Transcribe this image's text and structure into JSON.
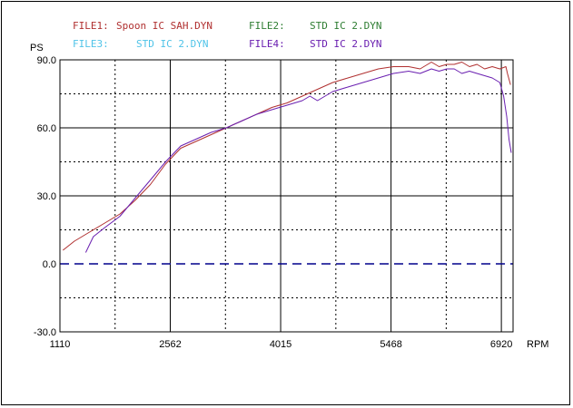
{
  "legend": {
    "file1": {
      "tag": "FILE1:",
      "name": "Spoon IC  SAH.DYN",
      "color": "#b03030"
    },
    "file2": {
      "tag": "FILE2:",
      "name": "STD IC 2.DYN",
      "color": "#2e7d32"
    },
    "file3": {
      "tag": "FILE3:",
      "name": "STD IC 2.DYN",
      "color": "#4fc3e8"
    },
    "file4": {
      "tag": "FILE4:",
      "name": "STD IC 2.DYN",
      "color": "#6a1fb0"
    }
  },
  "chart_data": {
    "type": "line",
    "title": "",
    "xlabel": "RPM",
    "ylabel": "PS",
    "xlim": [
      1110,
      7074
    ],
    "ylim": [
      -30,
      90
    ],
    "x_tick_values": [
      1110,
      2562,
      4015,
      5468,
      6920
    ],
    "x_tick_labels": [
      "1110",
      "2562",
      "4015",
      "5468",
      "6920"
    ],
    "y_tick_values": [
      90,
      60,
      30,
      0,
      -30
    ],
    "y_tick_labels": [
      "90.0",
      "60.0",
      "30.0",
      "0.0",
      "-30.0"
    ],
    "grid": true,
    "zero_line": {
      "value": 0,
      "color": "#00008b",
      "style": "dashed"
    },
    "series": [
      {
        "name": "Spoon IC  SAH.DYN",
        "color": "#b03030",
        "x": [
          1150,
          1300,
          1500,
          1700,
          1900,
          2100,
          2300,
          2500,
          2700,
          2900,
          3100,
          3300,
          3500,
          3700,
          3900,
          4100,
          4300,
          4500,
          4700,
          4900,
          5100,
          5300,
          5500,
          5700,
          5850,
          6000,
          6100,
          6200,
          6300,
          6400,
          6500,
          6600,
          6700,
          6800,
          6900,
          6980,
          7000,
          7040
        ],
        "y": [
          6,
          10,
          14,
          18,
          22,
          28,
          35,
          44,
          51,
          54,
          57,
          60,
          63,
          66,
          69,
          71,
          74,
          77,
          80,
          82,
          84,
          86,
          87,
          87,
          86,
          89,
          87,
          88,
          88,
          89,
          87,
          88,
          86,
          87,
          86,
          87,
          84,
          79
        ]
      },
      {
        "name": "STD IC 2.DYN",
        "color": "#6a1fb0",
        "x": [
          1450,
          1550,
          1700,
          1900,
          2100,
          2300,
          2500,
          2700,
          2900,
          3100,
          3300,
          3500,
          3700,
          3900,
          4100,
          4300,
          4400,
          4500,
          4700,
          4900,
          5100,
          5300,
          5500,
          5700,
          5850,
          6000,
          6100,
          6200,
          6300,
          6400,
          6500,
          6600,
          6700,
          6800,
          6900,
          6950,
          6990,
          7020,
          7050
        ],
        "y": [
          5,
          12,
          16,
          21,
          29,
          37,
          45,
          52,
          55,
          58,
          60,
          63,
          66,
          68,
          70,
          72,
          74,
          72,
          76,
          78,
          80,
          82,
          84,
          85,
          84,
          86,
          85,
          86,
          86,
          84,
          85,
          84,
          83,
          82,
          80,
          74,
          65,
          55,
          49
        ]
      }
    ]
  }
}
